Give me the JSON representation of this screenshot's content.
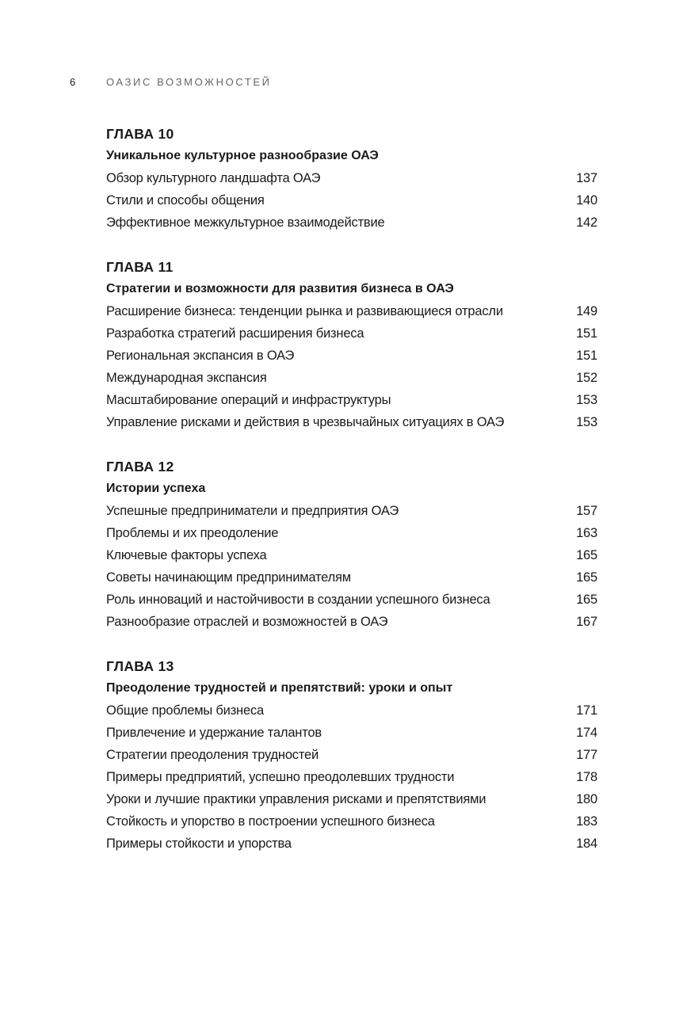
{
  "header": {
    "page_number": "6",
    "book_title": "ОАЗИС ВОЗМОЖНОСТЕЙ"
  },
  "chapters": [
    {
      "label": "ГЛАВА 10",
      "title": "Уникальное культурное разнообразие ОАЭ",
      "entries": [
        {
          "text": "Обзор культурного ландшафта ОАЭ",
          "page": "137"
        },
        {
          "text": "Стили и способы общения",
          "page": "140"
        },
        {
          "text": "Эффективное межкультурное взаимодействие",
          "page": "142"
        }
      ]
    },
    {
      "label": "ГЛАВА 11",
      "title": "Стратегии и возможности для развития бизнеса в ОАЭ",
      "entries": [
        {
          "text": "Расширение бизнеса: тенденции рынка и развивающиеся отрасли",
          "page": "149"
        },
        {
          "text": "Разработка стратегий расширения бизнеса",
          "page": "151"
        },
        {
          "text": "Региональная экспансия в ОАЭ",
          "page": "151"
        },
        {
          "text": "Международная экспансия",
          "page": "152"
        },
        {
          "text": "Масштабирование операций и инфраструктуры",
          "page": "153"
        },
        {
          "text": "Управление рисками и действия в чрезвычайных ситуациях в ОАЭ",
          "page": "153"
        }
      ]
    },
    {
      "label": "ГЛАВА 12",
      "title": "Истории успеха",
      "entries": [
        {
          "text": "Успешные предприниматели и предприятия ОАЭ",
          "page": "157"
        },
        {
          "text": "Проблемы и их преодоление",
          "page": "163"
        },
        {
          "text": "Ключевые факторы успеха",
          "page": "165"
        },
        {
          "text": "Советы начинающим предпринимателям",
          "page": "165"
        },
        {
          "text": "Роль инноваций и настойчивости в создании успешного бизнеса",
          "page": "165"
        },
        {
          "text": "Разнообразие отраслей и возможностей в ОАЭ",
          "page": "167"
        }
      ]
    },
    {
      "label": "ГЛАВА 13",
      "title": "Преодоление трудностей и препятствий: уроки и опыт",
      "entries": [
        {
          "text": "Общие проблемы бизнеса",
          "page": "171"
        },
        {
          "text": "Привлечение и удержание талантов",
          "page": "174"
        },
        {
          "text": "Стратегии преодоления трудностей",
          "page": "177"
        },
        {
          "text": "Примеры предприятий, успешно преодолевших трудности",
          "page": "178"
        },
        {
          "text": "Уроки и лучшие практики управления рисками и препятствиями",
          "page": "180"
        },
        {
          "text": "Стойкость и упорство в построении успешного бизнеса",
          "page": "183"
        },
        {
          "text": "Примеры стойкости и упорства",
          "page": "184"
        }
      ]
    }
  ]
}
